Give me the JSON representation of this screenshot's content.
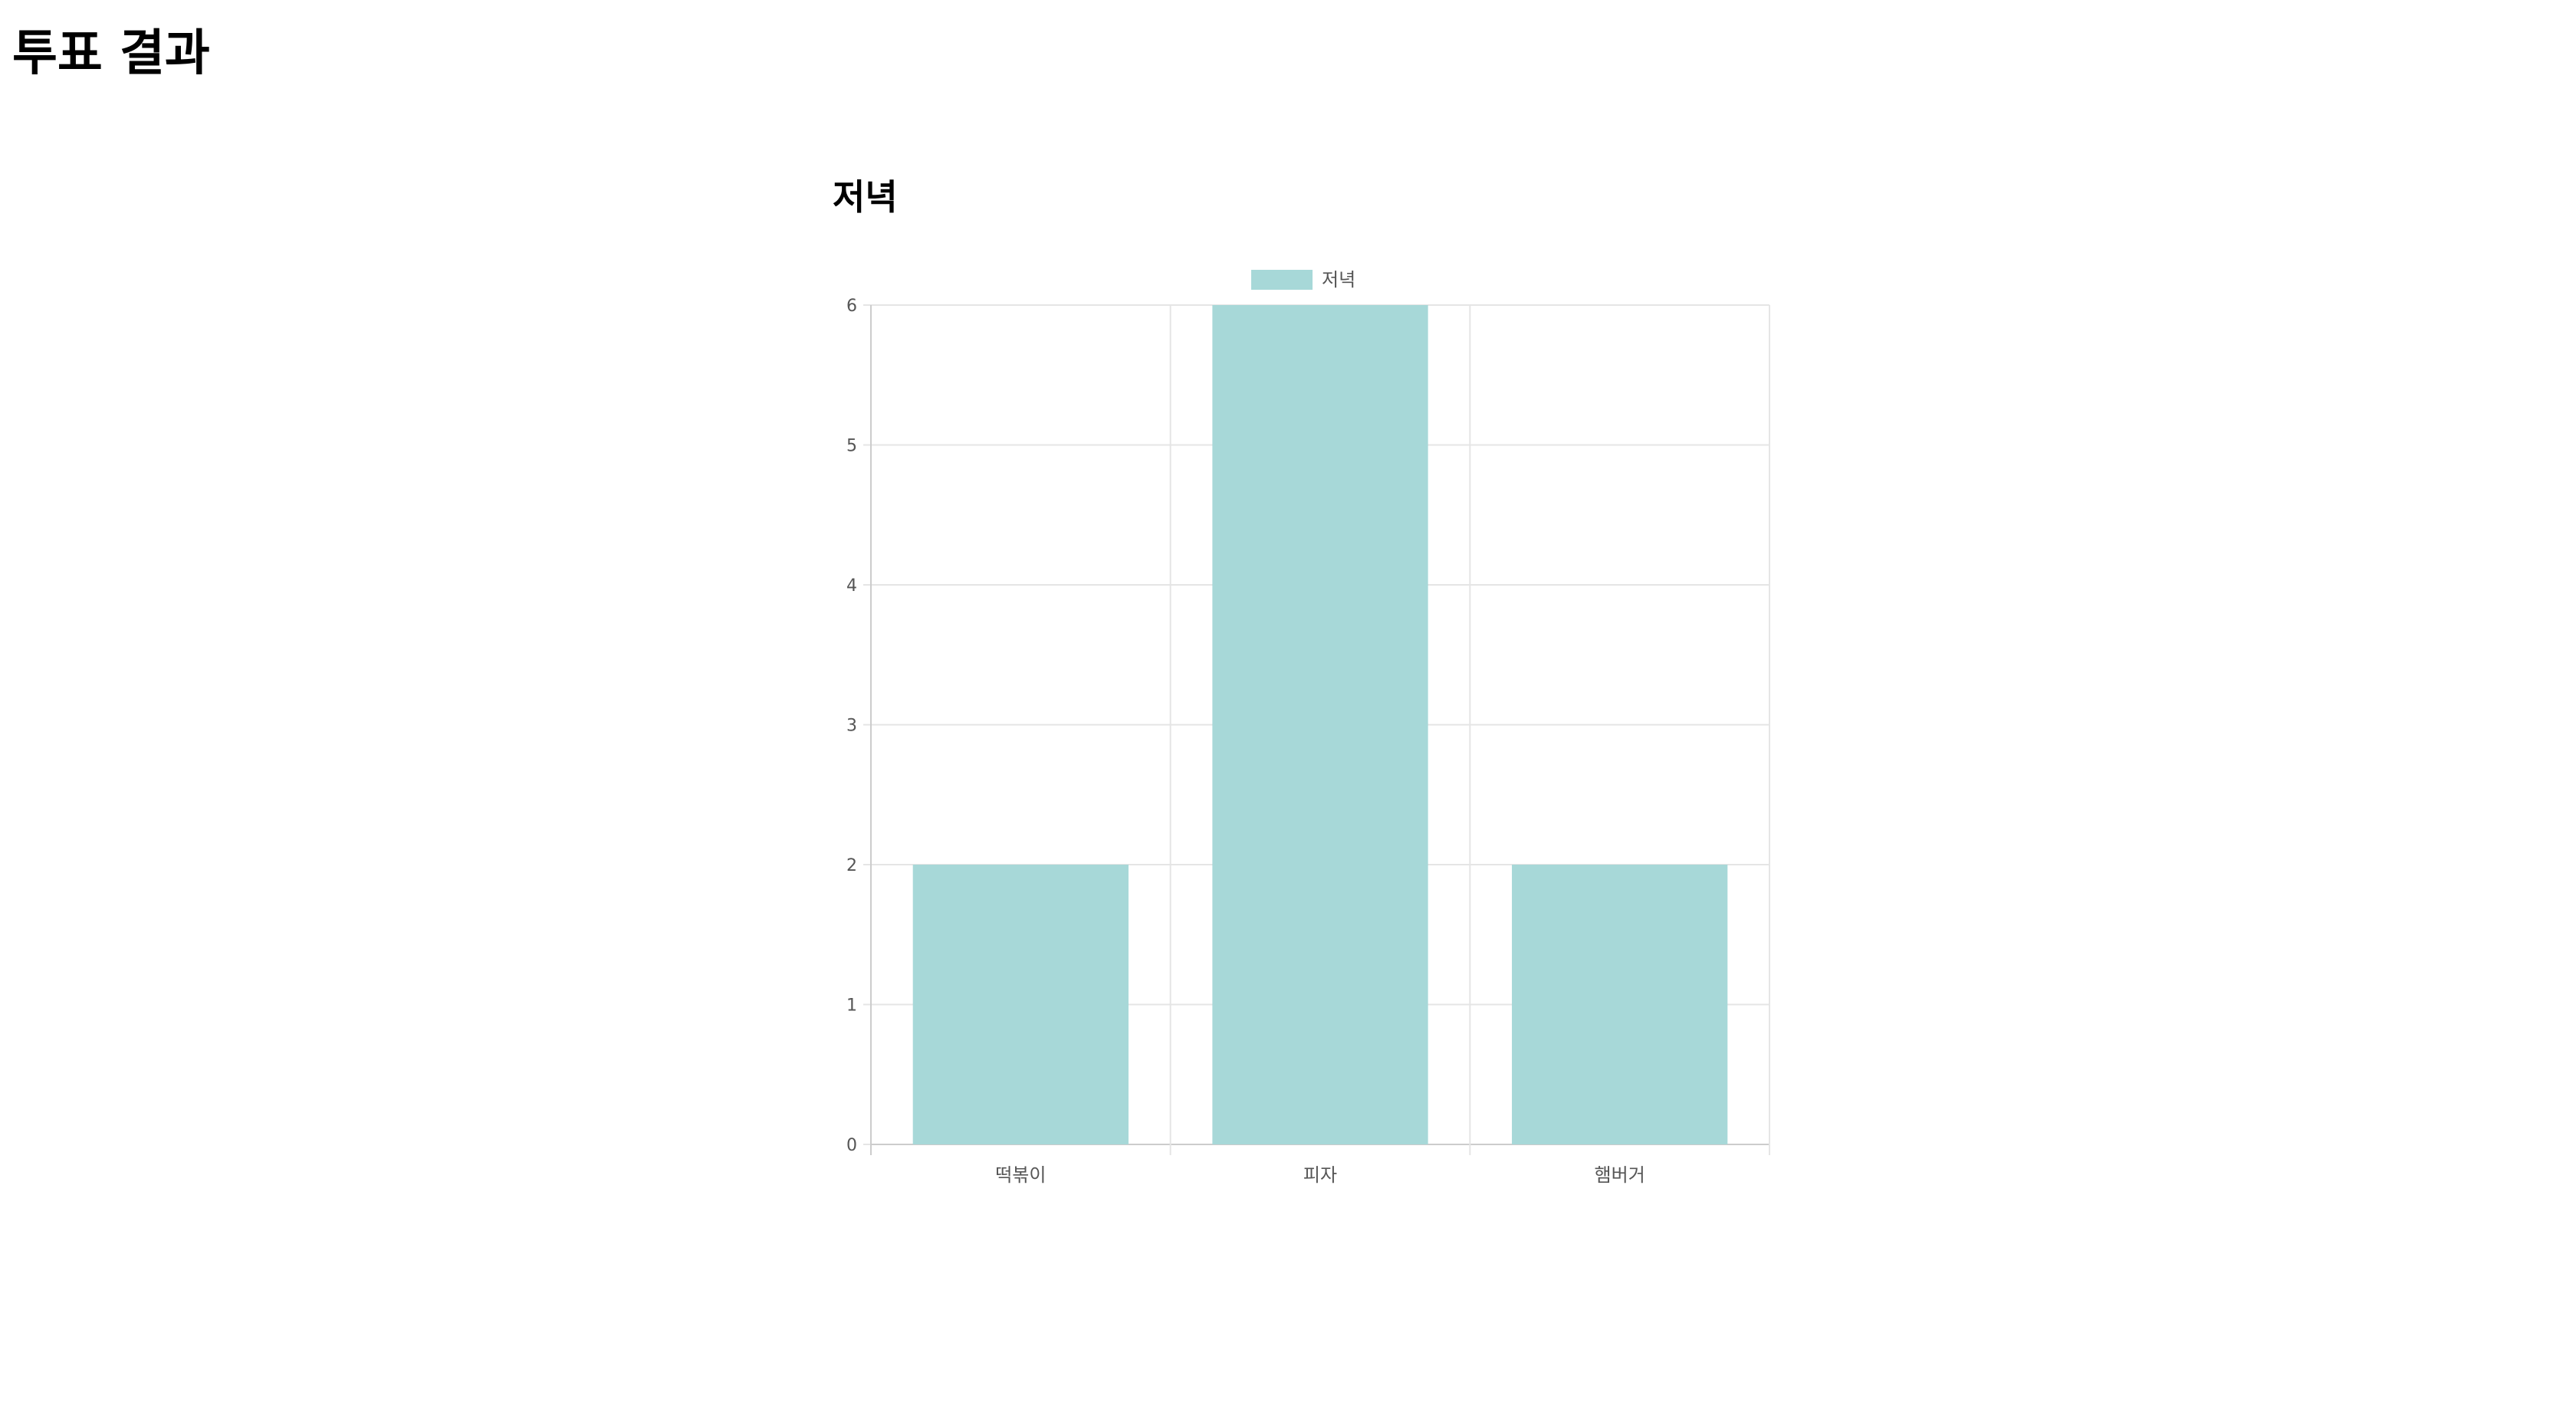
{
  "page": {
    "title": "투표 결과"
  },
  "chart_data": {
    "type": "bar",
    "title": "저녁",
    "categories": [
      "떡볶이",
      "피자",
      "햄버거"
    ],
    "series": [
      {
        "name": "저녁",
        "values": [
          2,
          6,
          2
        ],
        "color": "#a7d8d8"
      }
    ],
    "ylim": [
      0,
      6
    ],
    "yticks": [
      0,
      1,
      2,
      3,
      4,
      5,
      6
    ],
    "xlabel": "",
    "ylabel": "",
    "grid": true,
    "legend": "top-center",
    "colors": {
      "bar": "#a7d8d8",
      "grid": "#e5e5e5",
      "axis": "#cccccc",
      "tick_text": "#555555"
    }
  }
}
